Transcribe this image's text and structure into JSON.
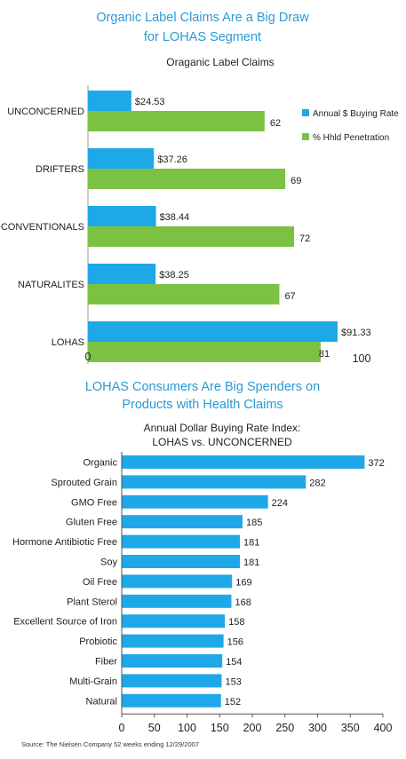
{
  "chart_data": [
    {
      "type": "bar",
      "orientation": "horizontal",
      "title": "Organic Label Claims Are a Big Draw for LOHAS Segment",
      "title_lines": [
        "Organic Label Claims Are a Big Draw",
        "for LOHAS Segment"
      ],
      "subtitle": "Oraganic Label Claims",
      "categories": [
        "UNCONCERNED",
        "DRIFTERS",
        "CONVENTIONALS",
        "NATURALITES",
        "LOHAS"
      ],
      "series": [
        {
          "name": "Annual $ Buying Rate",
          "color": "#1fa8e8",
          "values": [
            24.53,
            37.26,
            38.44,
            38.25,
            91.33
          ],
          "labels": [
            "$24.53",
            "$37.26",
            "$38.44",
            "$38.25",
            "$91.33"
          ]
        },
        {
          "name": "% Hhld Penetration",
          "color": "#7cc242",
          "values": [
            62,
            69,
            72,
            67,
            81
          ],
          "labels": [
            "62",
            "69",
            "72",
            "67",
            "81"
          ]
        }
      ],
      "legend": "right",
      "visible_ticks": [
        "0",
        "100"
      ]
    },
    {
      "type": "bar",
      "orientation": "horizontal",
      "title": "LOHAS Consumers Are Big Spenders on Products with Health Claims",
      "title_lines": [
        "LOHAS Consumers Are Big Spenders on",
        "Products with Health Claims"
      ],
      "subtitle": "Annual Dollar Buying Rate Index: LOHAS vs. UNCONCERNED",
      "subtitle_lines": [
        "Annual Dollar Buying Rate Index:",
        "LOHAS vs. UNCONCERNED"
      ],
      "categories": [
        "Organic",
        "Sprouted Grain",
        "GMO Free",
        "Gluten Free",
        "Hormone Antibiotic Free",
        "Soy",
        "Oil Free",
        "Plant Sterol",
        "Excellent Source of Iron",
        "Probiotic",
        "Fiber",
        "Multi-Grain",
        "Natural"
      ],
      "values": [
        372,
        282,
        224,
        185,
        181,
        181,
        169,
        168,
        158,
        156,
        154,
        153,
        152
      ],
      "color": "#1fa8e8",
      "xlim": [
        0,
        400
      ],
      "xticks": [
        0,
        50,
        100,
        150,
        200,
        250,
        300,
        350,
        400
      ],
      "grid": false
    }
  ],
  "source": "Source: The Nielsen Company    52 weeks ending 12/29/2007"
}
